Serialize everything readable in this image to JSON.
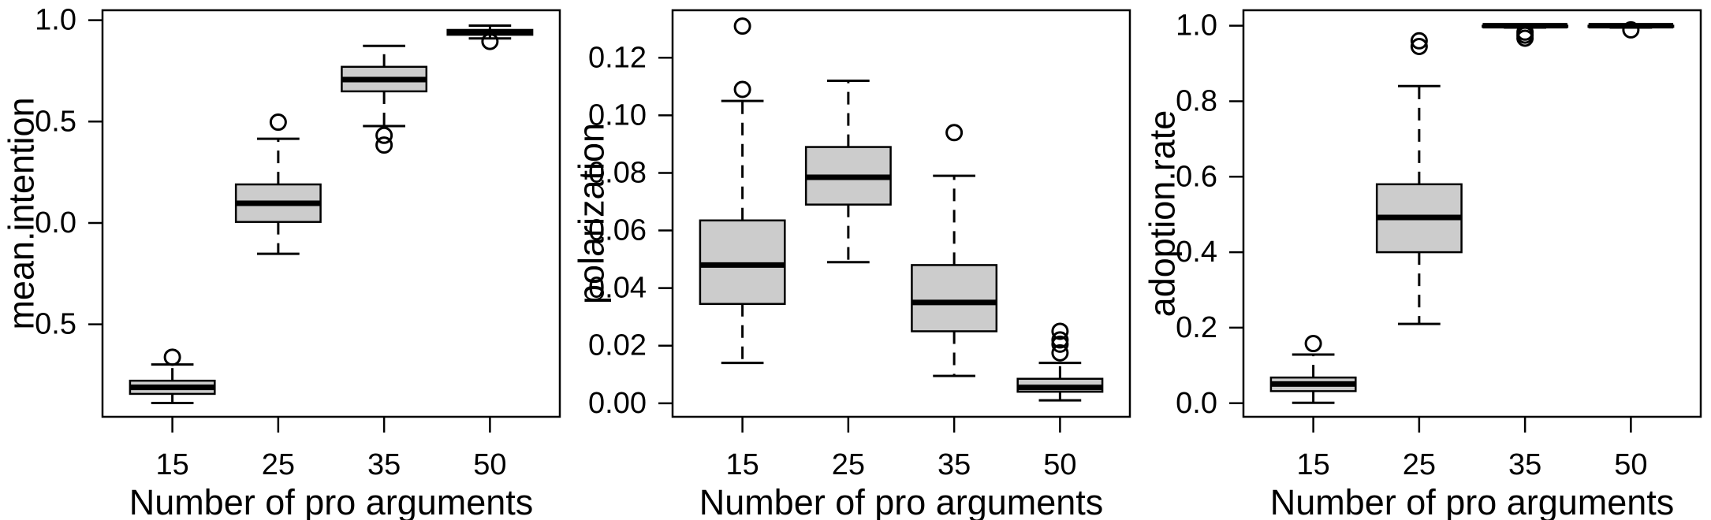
{
  "figure_title": "",
  "chart_data": [
    {
      "type": "boxplot",
      "title": "",
      "xlabel": "Number of pro arguments",
      "ylabel": "mean.intention",
      "categories": [
        "15",
        "25",
        "35",
        "50"
      ],
      "ylim": [
        -0.956,
        1.049
      ],
      "yticks": [
        -0.5,
        0.0,
        0.5,
        1.0
      ],
      "ytick_labels": [
        "-0.5",
        "0.0",
        "0.5",
        "1.0"
      ],
      "grid": false,
      "legend": null,
      "box_fill": "#cccccc",
      "line_color": "#000000",
      "boxes": [
        {
          "category": "15",
          "whisker_low": -0.888,
          "q1": -0.843,
          "median": -0.811,
          "q3": -0.778,
          "whisker_high": -0.698,
          "outliers": [
            -0.662
          ]
        },
        {
          "category": "25",
          "whisker_low": -0.152,
          "q1": 0.005,
          "median": 0.097,
          "q3": 0.19,
          "whisker_high": 0.415,
          "outliers": [
            0.497
          ]
        },
        {
          "category": "35",
          "whisker_low": 0.478,
          "q1": 0.649,
          "median": 0.707,
          "q3": 0.77,
          "whisker_high": 0.873,
          "outliers": [
            0.432,
            0.384
          ]
        },
        {
          "category": "50",
          "whisker_low": 0.91,
          "q1": 0.928,
          "median": 0.94,
          "q3": 0.952,
          "whisker_high": 0.973,
          "outliers": [
            0.895
          ]
        }
      ]
    },
    {
      "type": "boxplot",
      "title": "",
      "xlabel": "Number of pro arguments",
      "ylabel": "polarization",
      "categories": [
        "15",
        "25",
        "35",
        "50"
      ],
      "ylim": [
        -0.0047,
        0.1365
      ],
      "yticks": [
        0.0,
        0.02,
        0.04,
        0.06,
        0.08,
        0.1,
        0.12
      ],
      "ytick_labels": [
        "0.00",
        "0.02",
        "0.04",
        "0.06",
        "0.08",
        "0.10",
        "0.12"
      ],
      "grid": false,
      "legend": null,
      "box_fill": "#cccccc",
      "line_color": "#000000",
      "boxes": [
        {
          "category": "15",
          "whisker_low": 0.014,
          "q1": 0.0345,
          "median": 0.048,
          "q3": 0.0635,
          "whisker_high": 0.105,
          "outliers": [
            0.109,
            0.131
          ]
        },
        {
          "category": "25",
          "whisker_low": 0.049,
          "q1": 0.069,
          "median": 0.0785,
          "q3": 0.089,
          "whisker_high": 0.112,
          "outliers": []
        },
        {
          "category": "35",
          "whisker_low": 0.0095,
          "q1": 0.025,
          "median": 0.035,
          "q3": 0.048,
          "whisker_high": 0.079,
          "outliers": [
            0.094
          ]
        },
        {
          "category": "50",
          "whisker_low": 0.001,
          "q1": 0.004,
          "median": 0.0055,
          "q3": 0.0085,
          "whisker_high": 0.014,
          "outliers": [
            0.0175,
            0.0205,
            0.022,
            0.025
          ]
        }
      ]
    },
    {
      "type": "boxplot",
      "title": "",
      "xlabel": "Number of pro arguments",
      "ylabel": "adoption.rate",
      "categories": [
        "15",
        "25",
        "35",
        "50"
      ],
      "ylim": [
        -0.036,
        1.041
      ],
      "yticks": [
        0.0,
        0.2,
        0.4,
        0.6,
        0.8,
        1.0
      ],
      "ytick_labels": [
        "0.0",
        "0.2",
        "0.4",
        "0.6",
        "0.8",
        "1.0"
      ],
      "grid": false,
      "legend": null,
      "box_fill": "#cccccc",
      "line_color": "#000000",
      "boxes": [
        {
          "category": "15",
          "whisker_low": 0.001,
          "q1": 0.032,
          "median": 0.051,
          "q3": 0.068,
          "whisker_high": 0.129,
          "outliers": [
            0.158
          ]
        },
        {
          "category": "25",
          "whisker_low": 0.21,
          "q1": 0.4,
          "median": 0.492,
          "q3": 0.58,
          "whisker_high": 0.84,
          "outliers": [
            0.945,
            0.96
          ]
        },
        {
          "category": "35",
          "whisker_low": 0.995,
          "q1": 0.997,
          "median": 1.0,
          "q3": 1.0,
          "whisker_high": 1.0,
          "outliers": [
            0.983,
            0.975,
            0.967
          ]
        },
        {
          "category": "50",
          "whisker_low": 0.995,
          "q1": 0.997,
          "median": 1.0,
          "q3": 1.0,
          "whisker_high": 1.0,
          "outliers": [
            0.989
          ]
        }
      ]
    }
  ]
}
